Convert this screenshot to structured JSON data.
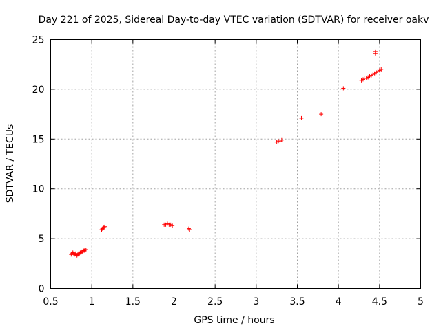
{
  "chart_data": {
    "type": "scatter",
    "title": "Day 221 of 2025, Sidereal Day-to-day VTEC variation (SDTVAR) for receiver oakv",
    "xlabel": "GPS time / hours",
    "ylabel": "SDTVAR / TECUs",
    "xlim": [
      0.5,
      5
    ],
    "ylim": [
      0,
      25
    ],
    "grid": true,
    "xticks": [
      "0.5",
      "1",
      "1.5",
      "2",
      "2.5",
      "3",
      "3.5",
      "4",
      "4.5",
      "5"
    ],
    "yticks": [
      "0",
      "5",
      "10",
      "15",
      "20",
      "25"
    ],
    "marker": "+",
    "color": "#ff0000",
    "series": [
      {
        "name": "SDTVAR",
        "x": [
          0.75,
          0.76,
          0.77,
          0.78,
          0.79,
          0.8,
          0.81,
          0.82,
          0.83,
          0.84,
          0.85,
          0.86,
          0.87,
          0.88,
          0.89,
          0.9,
          0.91,
          0.92,
          0.93,
          1.12,
          1.13,
          1.14,
          1.15,
          1.16,
          1.88,
          1.9,
          1.92,
          1.94,
          1.96,
          1.98,
          2.18,
          2.19,
          3.25,
          3.27,
          3.29,
          3.31,
          3.55,
          3.79,
          4.06,
          4.28,
          4.3,
          4.32,
          4.34,
          4.36,
          4.38,
          4.4,
          4.42,
          4.44,
          4.46,
          4.48,
          4.5,
          4.52,
          4.45,
          4.45
        ],
        "y": [
          3.4,
          3.5,
          3.6,
          3.5,
          3.4,
          3.5,
          3.4,
          3.3,
          3.4,
          3.5,
          3.5,
          3.6,
          3.6,
          3.7,
          3.7,
          3.8,
          3.8,
          3.9,
          3.9,
          5.9,
          6.0,
          6.1,
          6.1,
          6.2,
          6.4,
          6.4,
          6.5,
          6.4,
          6.4,
          6.3,
          6.0,
          5.9,
          14.7,
          14.8,
          14.8,
          14.9,
          17.1,
          17.5,
          20.1,
          20.9,
          21.0,
          21.1,
          21.1,
          21.2,
          21.3,
          21.4,
          21.5,
          21.6,
          21.7,
          21.8,
          21.9,
          22.0,
          23.6,
          23.8
        ]
      }
    ]
  }
}
